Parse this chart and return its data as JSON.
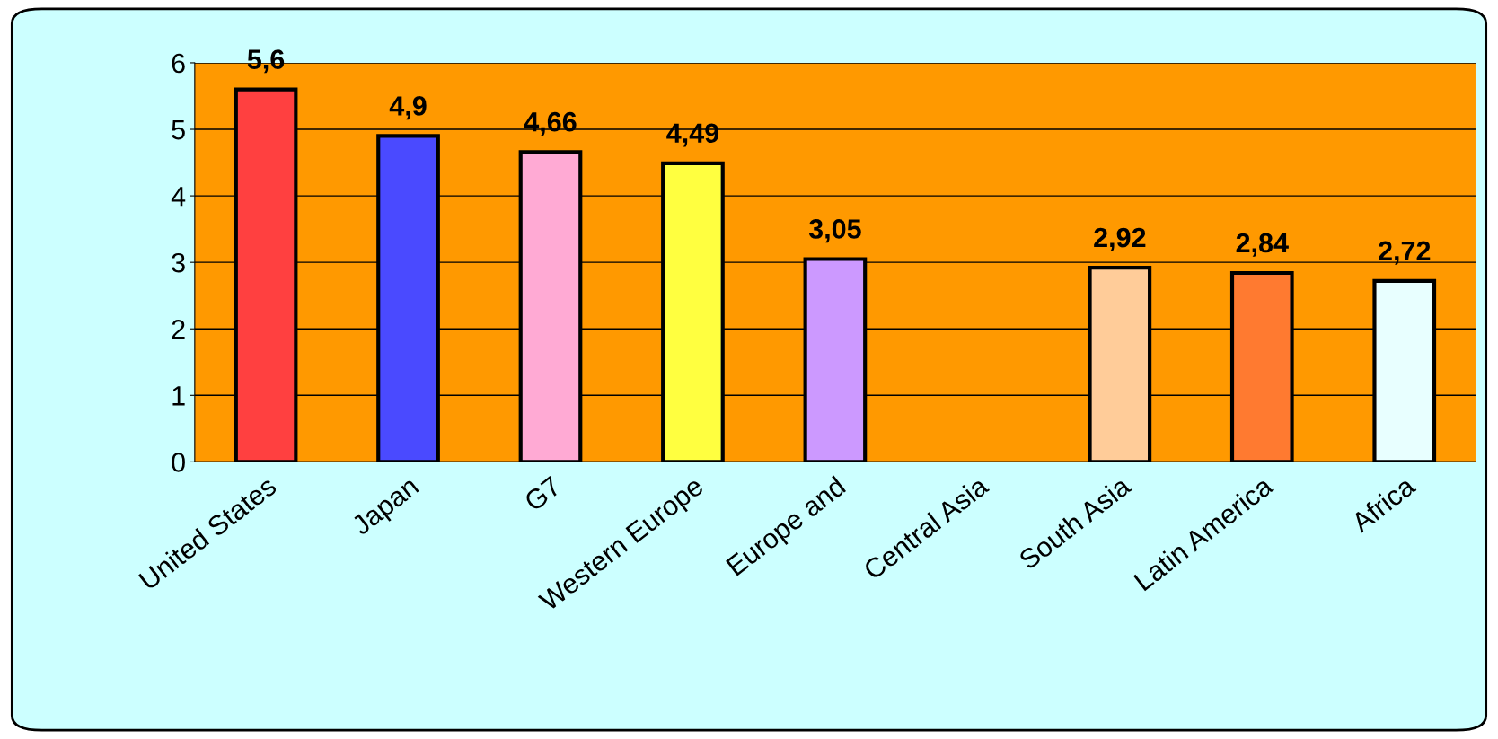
{
  "chart_data": {
    "type": "bar",
    "categories": [
      "United States",
      "Japan",
      "G7",
      "Western Europe",
      "Europe and",
      "Central Asia",
      "South Asia",
      "Latin America",
      "Africa"
    ],
    "values": [
      5.6,
      4.9,
      4.66,
      4.49,
      3.05,
      null,
      2.92,
      2.84,
      2.72
    ],
    "value_labels": [
      "5,6",
      "4,9",
      "4,66",
      "4,49",
      "3,05",
      null,
      "2,92",
      "2,84",
      "2,72"
    ],
    "colors": [
      "#ff4040",
      "#4a4aff",
      "#ffaad4",
      "#ffff40",
      "#cc99ff",
      "#ffffff",
      "#ffcc99",
      "#ff7a30",
      "#e8ffff"
    ],
    "ylim": [
      0,
      6
    ],
    "yticks": [
      0,
      1,
      2,
      3,
      4,
      5,
      6
    ],
    "grid": "y",
    "legend": false
  }
}
